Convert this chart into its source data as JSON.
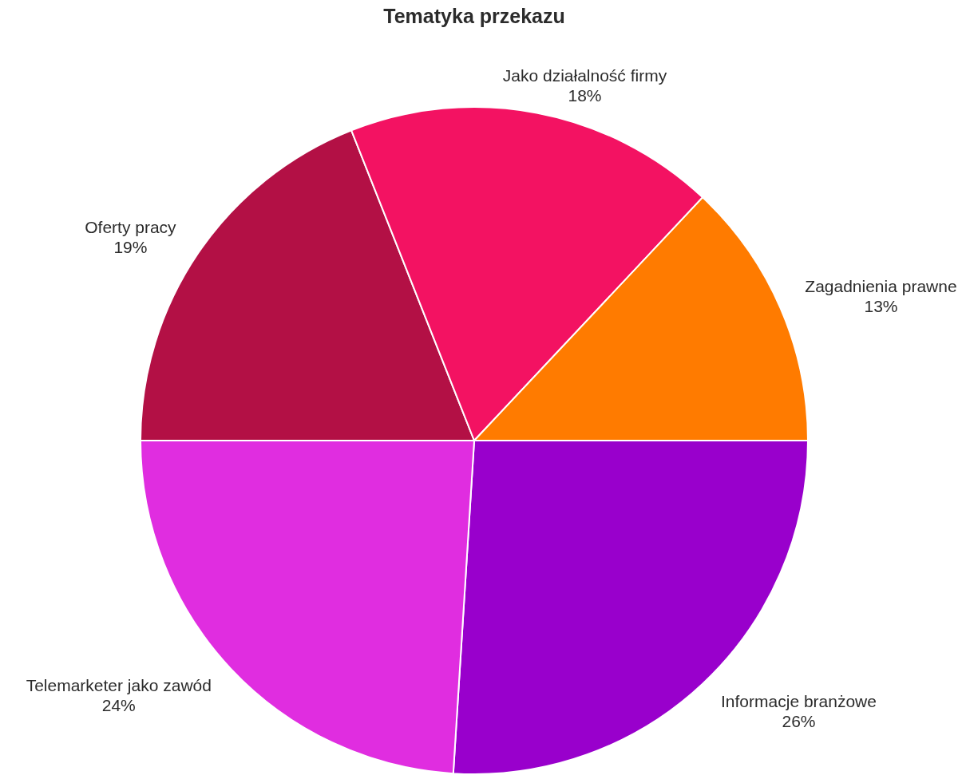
{
  "chart_data": {
    "type": "pie",
    "title": "Tematyka przekazu",
    "categories": [
      "Informacje branżowe",
      "Telemarketer jako zawód",
      "Oferty pracy",
      "Jako działalność firmy",
      "Zagadnienia prawne"
    ],
    "values": [
      26,
      24,
      19,
      18,
      13
    ],
    "value_labels": [
      "26%",
      "24%",
      "19%",
      "18%",
      "13%"
    ],
    "colors": [
      "#9900cc",
      "#e02de0",
      "#b31045",
      "#f31262",
      "#ff7b00"
    ]
  }
}
